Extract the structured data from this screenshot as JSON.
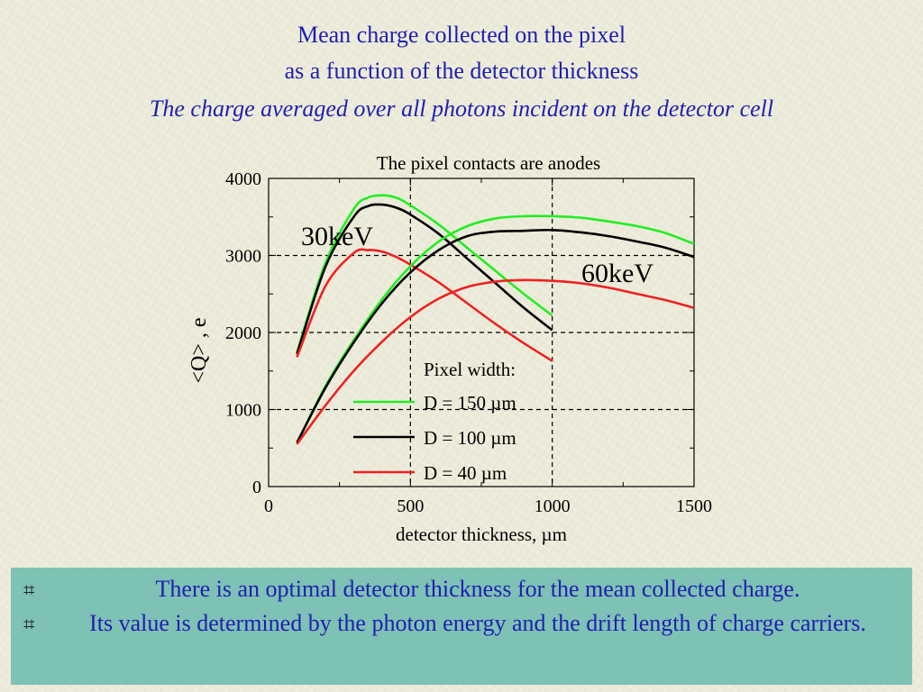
{
  "slide": {
    "title_line1": "Mean charge collected on the pixel",
    "title_line2": "as a function of the detector thickness",
    "subtitle": "The charge averaged over all photons incident on the detector cell",
    "bullets": [
      "There is an optimal detector thickness for the mean collected charge.",
      "Its value is determined by the photon energy and the drift length of charge carriers."
    ]
  },
  "chart_data": {
    "type": "line",
    "title": "The pixel contacts are anodes",
    "xlabel": "detector thickness, µm",
    "ylabel": "<Q> , e",
    "xlim": [
      0,
      1500
    ],
    "ylim": [
      0,
      4000
    ],
    "xticks": [
      0,
      500,
      1000,
      1500
    ],
    "yticks": [
      0,
      1000,
      2000,
      3000,
      4000
    ],
    "grid_x": [
      500,
      1000
    ],
    "grid_y": [
      1000,
      2000,
      3000
    ],
    "legend_title": "Pixel width:",
    "legend_position": "center",
    "annotations": [
      "30keV",
      "60keV"
    ],
    "colors": {
      "green": "#22ee22",
      "black": "#000000",
      "red": "#ee2222"
    },
    "series": [
      {
        "name": "D = 150 µm",
        "energy": "30keV",
        "color": "#22ee22",
        "x": [
          100,
          200,
          300,
          350,
          400,
          450,
          500,
          600,
          700,
          800,
          900,
          1000
        ],
        "y": [
          1740,
          2900,
          3600,
          3750,
          3780,
          3750,
          3650,
          3400,
          3100,
          2800,
          2500,
          2220
        ]
      },
      {
        "name": "D = 100 µm",
        "energy": "30keV",
        "color": "#000000",
        "x": [
          100,
          200,
          300,
          350,
          400,
          450,
          500,
          600,
          700,
          800,
          900,
          1000
        ],
        "y": [
          1720,
          2850,
          3500,
          3640,
          3660,
          3620,
          3530,
          3280,
          2960,
          2640,
          2320,
          2030
        ]
      },
      {
        "name": "D = 40 µm",
        "energy": "30keV",
        "color": "#ee2222",
        "x": [
          100,
          200,
          300,
          350,
          400,
          450,
          500,
          600,
          700,
          800,
          900,
          1000
        ],
        "y": [
          1680,
          2600,
          3030,
          3070,
          3050,
          2980,
          2880,
          2650,
          2380,
          2110,
          1860,
          1630
        ]
      },
      {
        "name": "D = 150 µm",
        "energy": "60keV",
        "color": "#22ee22",
        "x": [
          100,
          200,
          300,
          400,
          500,
          600,
          700,
          800,
          900,
          1000,
          1100,
          1200,
          1300,
          1400,
          1500
        ],
        "y": [
          560,
          1300,
          1900,
          2430,
          2860,
          3180,
          3380,
          3480,
          3510,
          3510,
          3490,
          3440,
          3380,
          3290,
          3150
        ]
      },
      {
        "name": "D = 100 µm",
        "energy": "60keV",
        "color": "#000000",
        "x": [
          100,
          200,
          300,
          400,
          500,
          600,
          700,
          800,
          900,
          1000,
          1100,
          1200,
          1300,
          1400,
          1500
        ],
        "y": [
          570,
          1280,
          1870,
          2380,
          2780,
          3070,
          3250,
          3310,
          3320,
          3330,
          3300,
          3250,
          3180,
          3100,
          2980
        ]
      },
      {
        "name": "D = 40 µm",
        "energy": "60keV",
        "color": "#ee2222",
        "x": [
          100,
          200,
          300,
          400,
          500,
          600,
          700,
          800,
          900,
          1000,
          1100,
          1200,
          1300,
          1400,
          1500
        ],
        "y": [
          550,
          1050,
          1500,
          1880,
          2200,
          2440,
          2590,
          2660,
          2680,
          2670,
          2640,
          2580,
          2500,
          2420,
          2320
        ]
      }
    ],
    "legend": [
      {
        "label": "D = 150 µm",
        "color": "#22ee22"
      },
      {
        "label": "D = 100 µm",
        "color": "#000000"
      },
      {
        "label": "D = 40 µm",
        "color": "#ee2222"
      }
    ]
  }
}
